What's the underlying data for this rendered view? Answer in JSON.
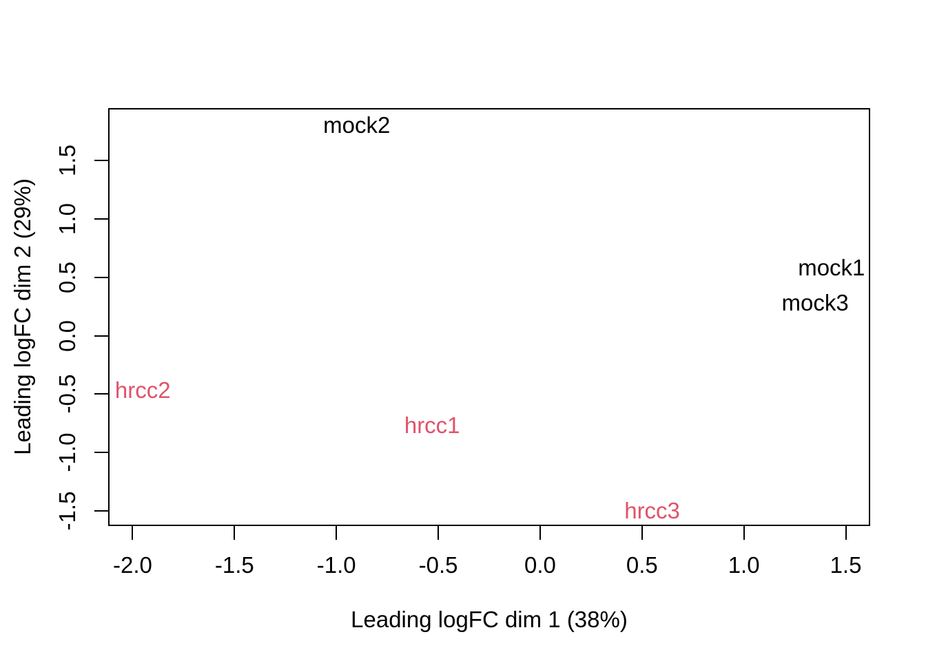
{
  "chart_data": {
    "type": "scatter",
    "title": "",
    "xlabel": "Leading logFC dim 1 (38%)",
    "ylabel": "Leading logFC dim 2 (29%)",
    "xlim": [
      -2.12,
      1.62
    ],
    "ylim": [
      -1.63,
      1.95
    ],
    "grid": false,
    "legend_position": "none",
    "point_style": "text-labels",
    "x_ticks": [
      {
        "value": -2.0,
        "label": "-2.0"
      },
      {
        "value": -1.5,
        "label": "-1.5"
      },
      {
        "value": -1.0,
        "label": "-1.0"
      },
      {
        "value": -0.5,
        "label": "-0.5"
      },
      {
        "value": 0.0,
        "label": "0.0"
      },
      {
        "value": 0.5,
        "label": "0.5"
      },
      {
        "value": 1.0,
        "label": "1.0"
      },
      {
        "value": 1.5,
        "label": "1.5"
      }
    ],
    "y_ticks": [
      {
        "value": 1.5,
        "label": "1.5"
      },
      {
        "value": 1.0,
        "label": "1.0"
      },
      {
        "value": 0.5,
        "label": "0.5"
      },
      {
        "value": 0.0,
        "label": "0.0"
      },
      {
        "value": -0.5,
        "label": "-0.5"
      },
      {
        "value": -1.0,
        "label": "-1.0"
      },
      {
        "value": -1.5,
        "label": "-1.5"
      }
    ],
    "series": [
      {
        "name": "mock",
        "color": "#000000",
        "points": [
          {
            "label": "mock2",
            "x": -0.9,
            "y": 1.8
          },
          {
            "label": "mock1",
            "x": 1.43,
            "y": 0.58
          },
          {
            "label": "mock3",
            "x": 1.35,
            "y": 0.28
          }
        ]
      },
      {
        "name": "hrcc",
        "color": "#DF536B",
        "points": [
          {
            "label": "hrcc2",
            "x": -1.95,
            "y": -0.47
          },
          {
            "label": "hrcc1",
            "x": -0.53,
            "y": -0.77
          },
          {
            "label": "hrcc3",
            "x": 0.55,
            "y": -1.5
          }
        ]
      }
    ],
    "colors": {
      "background": "#FFFFFF",
      "axis": "#000000"
    }
  }
}
